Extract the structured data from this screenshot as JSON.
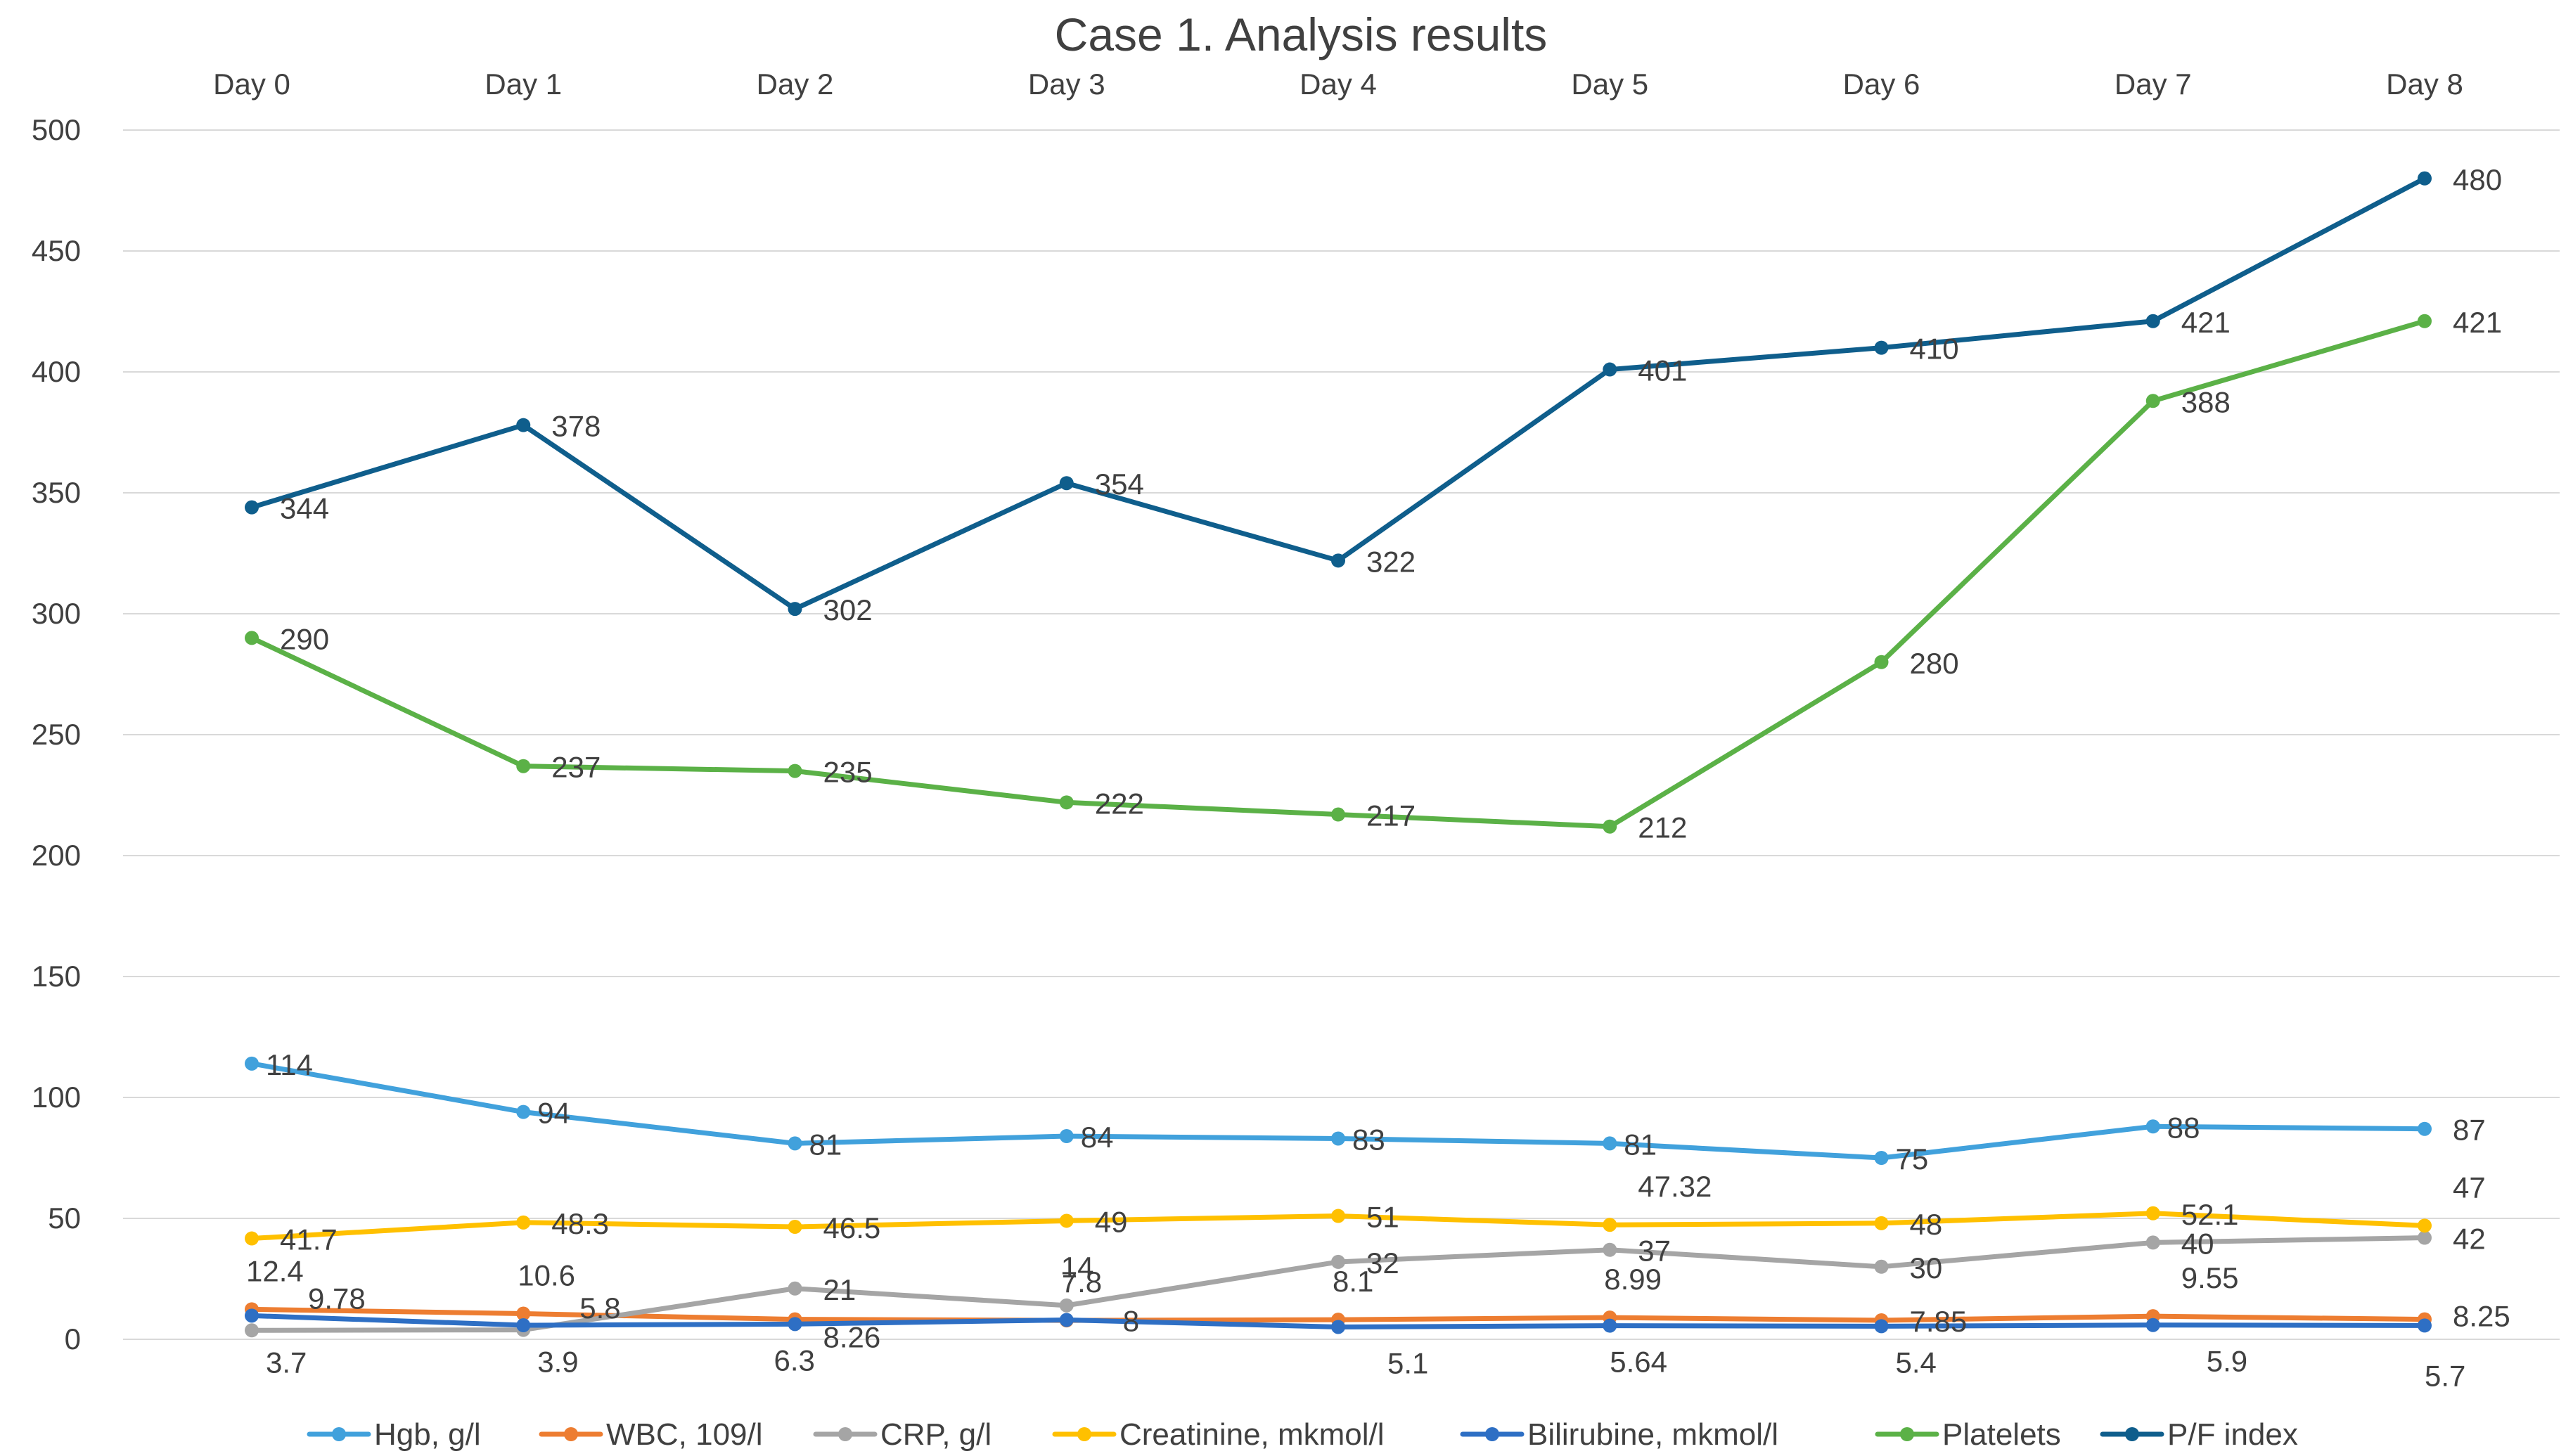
{
  "chart_data": {
    "type": "line",
    "title": "Case 1. Analysis results",
    "categories": [
      "Day 0",
      "Day 1",
      "Day 2",
      "Day 3",
      "Day 4",
      "Day 5",
      "Day 6",
      "Day 7",
      "Day 8"
    ],
    "ylim": [
      0,
      500
    ],
    "yticks": [
      0,
      50,
      100,
      150,
      200,
      250,
      300,
      350,
      400,
      450,
      500
    ],
    "grid": true,
    "legend": "bottom",
    "series": [
      {
        "name": "Hgb, g/l",
        "color": "#41a1dc",
        "values": [
          114,
          94,
          81,
          84,
          83,
          81,
          75,
          88,
          87
        ]
      },
      {
        "name": "WBC, 109/l",
        "color": "#ed7d31",
        "values": [
          12.4,
          10.6,
          8.26,
          7.8,
          8.1,
          8.99,
          7.85,
          9.55,
          8.25
        ]
      },
      {
        "name": "CRP, g/l",
        "color": "#a5a5a5",
        "values": [
          3.7,
          3.9,
          21,
          14,
          32,
          37,
          30,
          40,
          42
        ]
      },
      {
        "name": "Creatinine, mkmol/l",
        "color": "#ffc000",
        "values": [
          41.7,
          48.3,
          46.5,
          49,
          51,
          47.32,
          48,
          52.1,
          47
        ]
      },
      {
        "name": "Bilirubine, mkmol/l",
        "color": "#2e6fc4",
        "values": [
          9.78,
          5.8,
          6.3,
          8,
          5.1,
          5.64,
          5.4,
          5.9,
          5.7
        ]
      },
      {
        "name": "Platelets",
        "color": "#5bb147",
        "values": [
          290,
          237,
          235,
          222,
          217,
          212,
          280,
          388,
          421
        ]
      },
      {
        "name": "P/F index",
        "color": "#0f5e8c",
        "values": [
          344,
          378,
          302,
          354,
          322,
          401,
          410,
          421,
          480
        ]
      }
    ]
  }
}
